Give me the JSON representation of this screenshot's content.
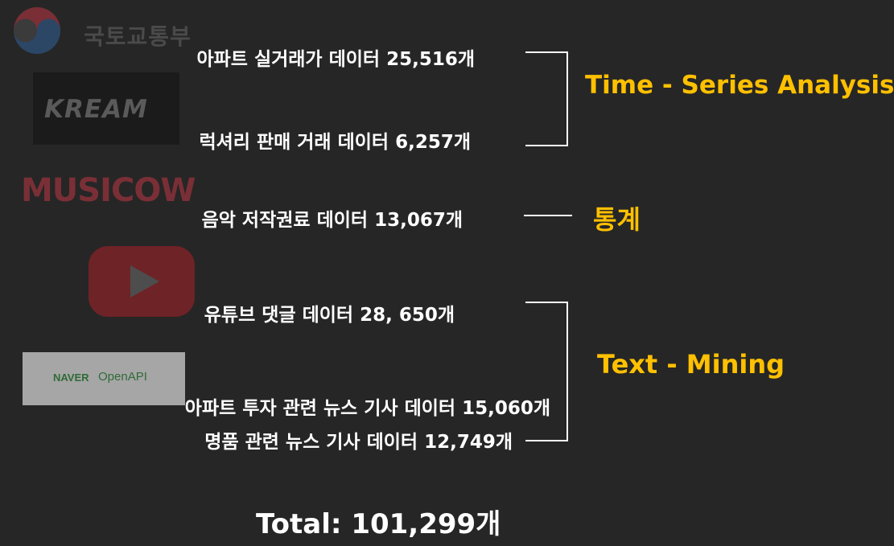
{
  "logos": {
    "molit": "국토교통부",
    "kream": "KREAM",
    "musicow": "MUSICOW",
    "youtube": "play-icon",
    "naver_brand": "NAVER",
    "naver_api": "OpenAPI"
  },
  "datasets": [
    {
      "label": "아파트 실거래가 데이터 25,516개"
    },
    {
      "label": "럭셔리 판매 거래 데이터 6,257개"
    },
    {
      "label": "음악 저작권료 데이터 13,067개"
    },
    {
      "label": "유튜브 댓글 데이터 28, 650개"
    },
    {
      "label": "아파트 투자 관련 뉴스 기사 데이터 15,060개"
    },
    {
      "label": "명품 관련 뉴스 기사 데이터 12,749개"
    }
  ],
  "categories": {
    "time_series": "Time - Series Analysis",
    "stats": "통계",
    "text_mining": "Text - Mining"
  },
  "total": "Total: 101,299개",
  "colors": {
    "background": "#262626",
    "accent": "#ffc000",
    "text": "#ffffff"
  }
}
